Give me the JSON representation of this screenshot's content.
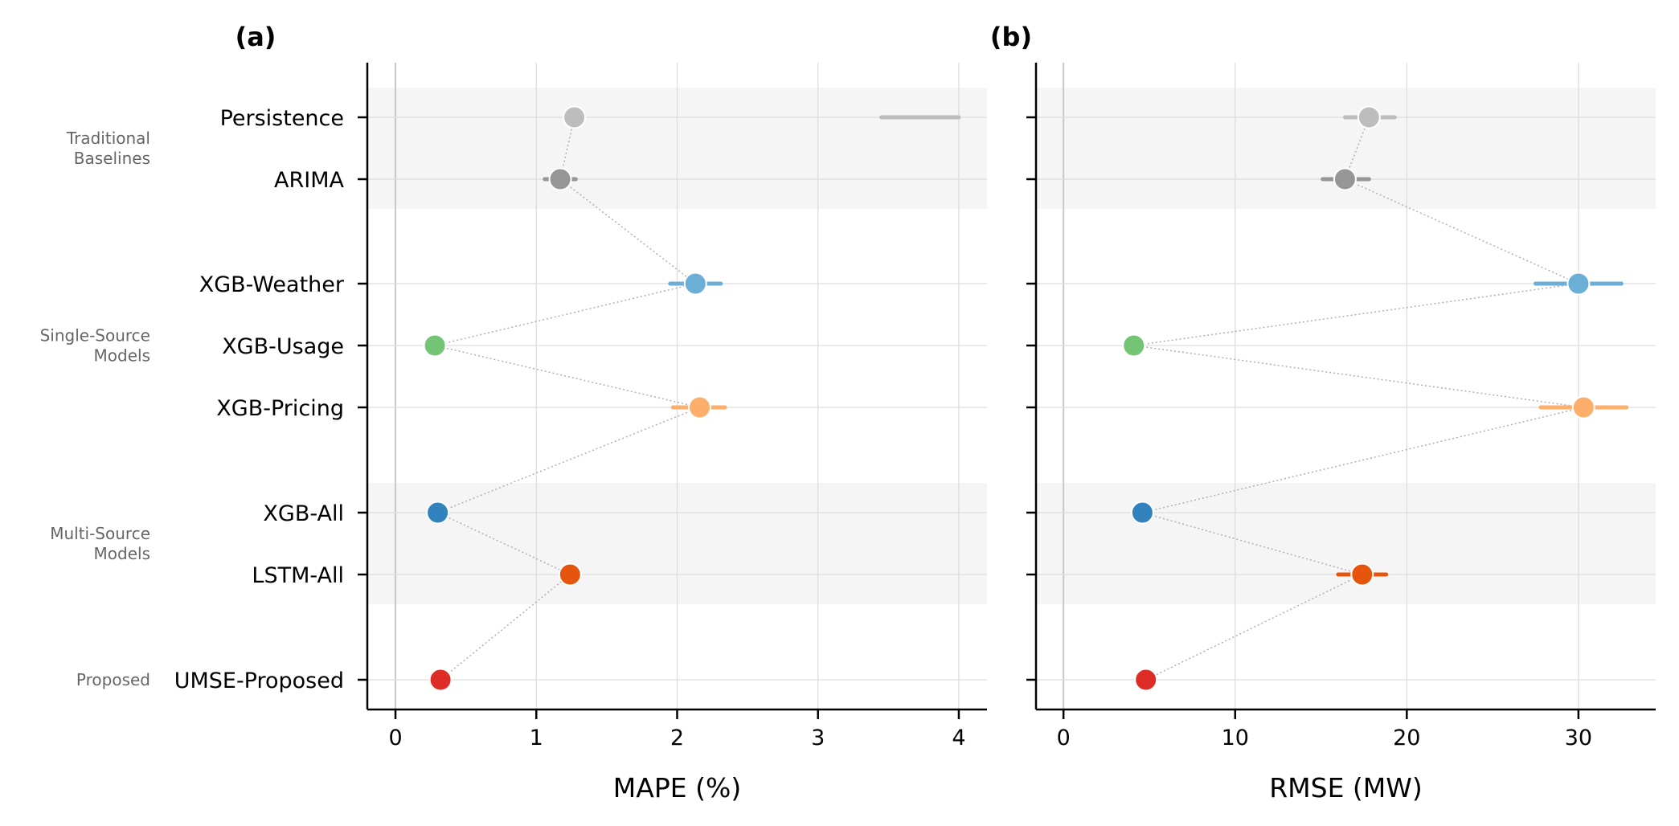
{
  "chart_data": [
    {
      "type": "dot",
      "panel": "(a)",
      "title": "(a)",
      "xlabel": "MAPE (%)",
      "xlim": [
        -0.2,
        4.2
      ],
      "xticks": [
        0,
        1,
        2,
        3,
        4
      ],
      "grid": true,
      "points": [
        {
          "model": "Persistence",
          "value": 1.27,
          "err_low": 3.45,
          "err_high": 4.0,
          "color": "#bdbdbd"
        },
        {
          "model": "ARIMA",
          "value": 1.17,
          "err_low": 1.06,
          "err_high": 1.28,
          "color": "#969696"
        },
        {
          "model": "XGB-Weather",
          "value": 2.13,
          "err_low": 1.95,
          "err_high": 2.31,
          "color": "#6baed6"
        },
        {
          "model": "XGB-Usage",
          "value": 0.28,
          "err_low": 0.28,
          "err_high": 0.28,
          "color": "#74c476"
        },
        {
          "model": "XGB-Pricing",
          "value": 2.16,
          "err_low": 1.97,
          "err_high": 2.34,
          "color": "#fdae6b"
        },
        {
          "model": "XGB-All",
          "value": 0.3,
          "err_low": 0.3,
          "err_high": 0.3,
          "color": "#3182bd"
        },
        {
          "model": "LSTM-All",
          "value": 1.24,
          "err_low": 1.24,
          "err_high": 1.24,
          "color": "#e6550d"
        },
        {
          "model": "UMSE-Proposed",
          "value": 0.32,
          "err_low": 0.32,
          "err_high": 0.32,
          "color": "#de2d26"
        }
      ]
    },
    {
      "type": "dot",
      "panel": "(b)",
      "title": "(b)",
      "xlabel": "RMSE (MW)",
      "xlim": [
        -1.6,
        34.5
      ],
      "xticks": [
        0,
        10,
        20,
        30
      ],
      "grid": true,
      "points": [
        {
          "model": "Persistence",
          "value": 17.8,
          "err_low": 16.4,
          "err_high": 19.3,
          "color": "#bdbdbd"
        },
        {
          "model": "ARIMA",
          "value": 16.4,
          "err_low": 15.1,
          "err_high": 17.8,
          "color": "#969696"
        },
        {
          "model": "XGB-Weather",
          "value": 30.0,
          "err_low": 27.5,
          "err_high": 32.5,
          "color": "#6baed6"
        },
        {
          "model": "XGB-Usage",
          "value": 4.1,
          "err_low": 4.1,
          "err_high": 4.1,
          "color": "#74c476"
        },
        {
          "model": "XGB-Pricing",
          "value": 30.3,
          "err_low": 27.8,
          "err_high": 32.8,
          "color": "#fdae6b"
        },
        {
          "model": "XGB-All",
          "value": 4.6,
          "err_low": 4.6,
          "err_high": 4.6,
          "color": "#3182bd"
        },
        {
          "model": "LSTM-All",
          "value": 17.4,
          "err_low": 16.0,
          "err_high": 18.8,
          "color": "#e6550d"
        },
        {
          "model": "UMSE-Proposed",
          "value": 4.8,
          "err_low": 4.8,
          "err_high": 4.8,
          "color": "#de2d26"
        }
      ]
    }
  ],
  "models": [
    "Persistence",
    "ARIMA",
    "XGB-Weather",
    "XGB-Usage",
    "XGB-Pricing",
    "XGB-All",
    "LSTM-All",
    "UMSE-Proposed"
  ],
  "groups": [
    {
      "lines": [
        "Traditional",
        "Baselines"
      ],
      "members": [
        "Persistence",
        "ARIMA"
      ],
      "shaded": true
    },
    {
      "lines": [
        "Single-Source",
        "Models"
      ],
      "members": [
        "XGB-Weather",
        "XGB-Usage",
        "XGB-Pricing"
      ],
      "shaded": false
    },
    {
      "lines": [
        "Multi-Source",
        "Models"
      ],
      "members": [
        "XGB-All",
        "LSTM-All"
      ],
      "shaded": true
    },
    {
      "lines": [
        "Proposed"
      ],
      "members": [
        "UMSE-Proposed"
      ],
      "shaded": false
    }
  ],
  "colors": {
    "band": "#f5f5f5",
    "grid": "#dddddd",
    "zero_line": "#c8c8c8",
    "connector": "#b0b0b0"
  }
}
